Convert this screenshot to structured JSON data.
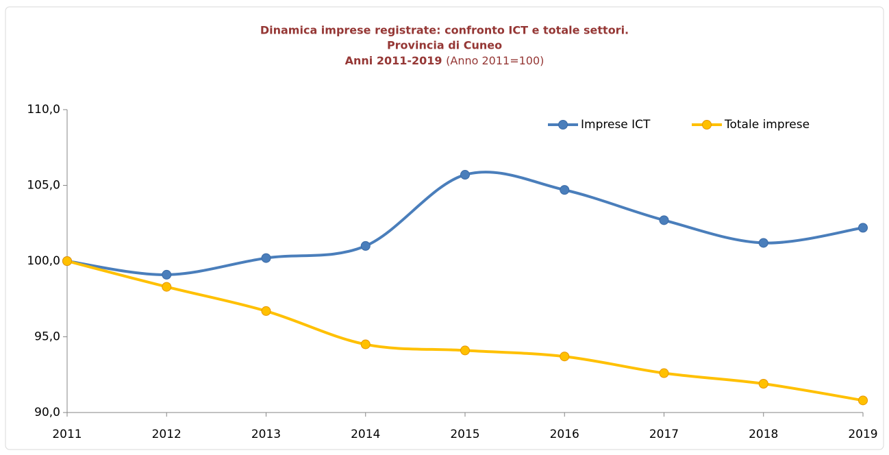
{
  "chart_data": {
    "type": "line",
    "title": [
      "Dinamica imprese registrate: confronto ICT e totale settori.",
      "Provincia di Cuneo",
      "Anni 2011-2019"
    ],
    "subtitle": "(Anno 2011=100)",
    "categories": [
      "2011",
      "2012",
      "2013",
      "2014",
      "2015",
      "2016",
      "2017",
      "2018",
      "2019"
    ],
    "series": [
      {
        "name": "Imprese ICT",
        "color": "#4a7ebb",
        "values": [
          100,
          99.1,
          100.2,
          101.0,
          105.7,
          104.7,
          102.7,
          101.2,
          102.2
        ]
      },
      {
        "name": "Totale imprese",
        "color": "#ffc000",
        "values": [
          100,
          98.3,
          96.7,
          94.5,
          94.1,
          93.7,
          92.6,
          91.9,
          90.8
        ]
      }
    ],
    "ylim": [
      90,
      110
    ],
    "yticks": [
      {
        "value": 90,
        "label": "90,0"
      },
      {
        "value": 95,
        "label": "95,0"
      },
      {
        "value": 100,
        "label": "100,0"
      },
      {
        "value": 105,
        "label": "105,0"
      },
      {
        "value": 110,
        "label": "110,0"
      }
    ],
    "legend": "top-right",
    "grid": false
  }
}
